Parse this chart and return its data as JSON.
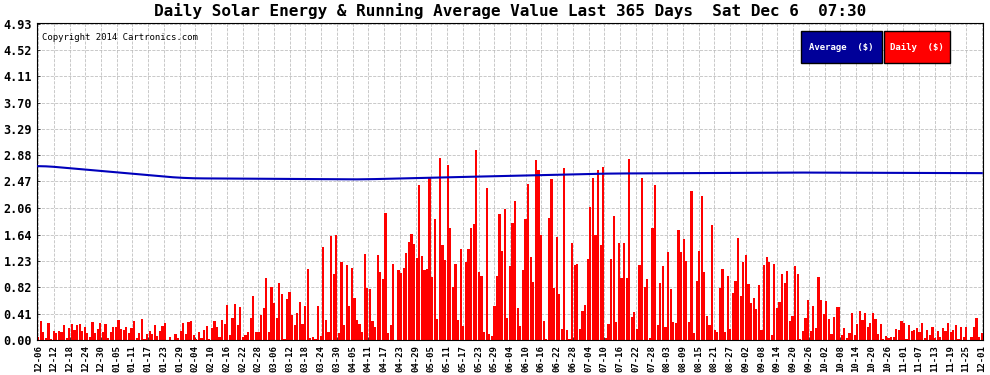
{
  "title": "Daily Solar Energy & Running Average Value Last 365 Days  Sat Dec 6  07:30",
  "copyright": "Copyright 2014 Cartronics.com",
  "background_color": "#ffffff",
  "bar_color": "#ff0000",
  "avg_line_color": "#0000bb",
  "yticks": [
    0.0,
    0.41,
    0.82,
    1.23,
    1.64,
    2.06,
    2.47,
    2.88,
    3.29,
    3.7,
    4.11,
    4.52,
    4.93
  ],
  "ylim": [
    0,
    4.93
  ],
  "legend_avg_bg": "#000099",
  "legend_daily_bg": "#cc0000",
  "legend_text_color": "#ffffff",
  "title_fontsize": 11.5,
  "xlabel_fontsize": 6.5,
  "ylabel_fontsize": 8.5,
  "xtick_labels": [
    "12-06",
    "12-12",
    "12-18",
    "12-24",
    "12-30",
    "01-05",
    "01-11",
    "01-17",
    "01-23",
    "01-29",
    "02-04",
    "02-10",
    "02-16",
    "02-22",
    "02-28",
    "03-06",
    "03-12",
    "03-18",
    "03-24",
    "03-30",
    "04-05",
    "04-11",
    "04-17",
    "04-23",
    "04-29",
    "05-05",
    "05-11",
    "05-17",
    "05-23",
    "05-29",
    "06-04",
    "06-10",
    "06-16",
    "06-22",
    "06-28",
    "07-04",
    "07-10",
    "07-16",
    "07-22",
    "07-28",
    "08-03",
    "08-09",
    "08-15",
    "08-21",
    "08-27",
    "09-02",
    "09-08",
    "09-14",
    "09-20",
    "09-26",
    "10-02",
    "10-08",
    "10-14",
    "10-20",
    "10-26",
    "11-01",
    "11-07",
    "11-13",
    "11-19",
    "11-25",
    "12-01"
  ]
}
